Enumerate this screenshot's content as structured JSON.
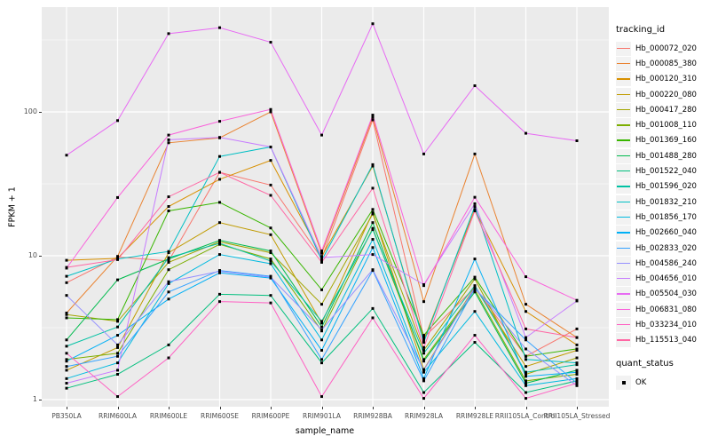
{
  "chart": {
    "y_axis": {
      "title": "FPKM + 1",
      "ticks": [
        {
          "label": "1",
          "value": 1
        },
        {
          "label": "10",
          "value": 10
        },
        {
          "label": "100",
          "value": 100
        }
      ],
      "minor_gridline_values": [
        3.1623,
        31.623,
        316.23
      ]
    },
    "x_axis": {
      "title": "sample_name",
      "categories": [
        "PB350LA",
        "RRIM600LA",
        "RRIM600LE",
        "RRIM600SE",
        "RRIM600PE",
        "RRIM901LA",
        "RRIM928BA",
        "RRIM928LA",
        "RRIM928LE",
        "RRII105LA_Control",
        "RRII105LA_Stressed"
      ]
    },
    "colors": {
      "panel_background": "#EBEBEB",
      "gridline": "#FFFFFF",
      "point": "#000000",
      "tick_label": "#4D4D4D"
    }
  },
  "legend": {
    "tracking_title": "tracking_id",
    "quant_title": "quant_status",
    "quant_items": [
      {
        "label": "OK"
      }
    ]
  },
  "chart_data": {
    "type": "line",
    "title": "",
    "xlabel": "sample_name",
    "ylabel": "FPKM + 1",
    "y_scale": "log10",
    "ylim": [
      1,
      450
    ],
    "grid": true,
    "legend_position": "right",
    "point_shape": "black-square",
    "x": [
      "PB350LA",
      "RRIM600LA",
      "RRIM600LE",
      "RRIM600SE",
      "RRIM600PE",
      "RRIM901LA",
      "RRIM928BA",
      "RRIM928LA",
      "RRIM928LE",
      "RRII105LA_Control",
      "RRII105LA_Stressed"
    ],
    "series": [
      {
        "name": "Hb_000072_020",
        "color": "#F8766D",
        "values": [
          6.5,
          9.8,
          9.2,
          38,
          31,
          9.6,
          88,
          2.7,
          6.0,
          2.0,
          3.1
        ]
      },
      {
        "name": "Hb_000085_380",
        "color": "#EA8331",
        "values": [
          4.0,
          9.9,
          61,
          66,
          100,
          10.4,
          92,
          4.8,
          51,
          4.6,
          2.7
        ]
      },
      {
        "name": "Hb_000120_310",
        "color": "#D89000",
        "values": [
          9.3,
          9.6,
          22,
          34,
          46,
          9.9,
          42,
          2.6,
          21,
          4.1,
          2.4
        ]
      },
      {
        "name": "Hb_000220_080",
        "color": "#C09B00",
        "values": [
          1.6,
          2.3,
          10.5,
          17,
          14,
          3.4,
          20,
          1.62,
          6.1,
          1.7,
          2.2
        ]
      },
      {
        "name": "Hb_000417_280",
        "color": "#A3A500",
        "values": [
          3.9,
          3.5,
          9.0,
          12.5,
          10.5,
          4.6,
          19.5,
          2.2,
          6.9,
          1.5,
          1.95
        ]
      },
      {
        "name": "Hb_001008_110",
        "color": "#7CAE00",
        "values": [
          1.9,
          2.1,
          8.0,
          12.0,
          9.5,
          3.0,
          15.5,
          1.9,
          5.8,
          1.35,
          1.5
        ]
      },
      {
        "name": "Hb_001369_160",
        "color": "#39B600",
        "values": [
          3.7,
          3.6,
          20.5,
          23.5,
          15.6,
          5.8,
          21,
          2.8,
          7.1,
          2.0,
          2.25
        ]
      },
      {
        "name": "Hb_001488_280",
        "color": "#00BB4E",
        "values": [
          2.6,
          6.8,
          9.5,
          12.8,
          10.8,
          3.2,
          17,
          1.85,
          5.6,
          1.3,
          1.6
        ]
      },
      {
        "name": "Hb_001522_040",
        "color": "#00BF7D",
        "values": [
          1.2,
          1.5,
          2.4,
          5.4,
          5.3,
          1.8,
          4.3,
          1.12,
          2.5,
          1.12,
          1.35
        ]
      },
      {
        "name": "Hb_001596_020",
        "color": "#00C1A3",
        "values": [
          2.35,
          3.2,
          9.7,
          12.2,
          9.2,
          3.5,
          15.2,
          2.1,
          6.2,
          1.55,
          1.75
        ]
      },
      {
        "name": "Hb_001832_210",
        "color": "#00BFC4",
        "values": [
          7.2,
          9.5,
          10.7,
          49,
          57,
          9.3,
          43,
          2.5,
          22,
          1.9,
          1.8
        ]
      },
      {
        "name": "Hb_001856_170",
        "color": "#00BAE0",
        "values": [
          1.4,
          1.8,
          6.4,
          10.2,
          8.8,
          2.6,
          13,
          1.55,
          4.1,
          1.25,
          1.4
        ]
      },
      {
        "name": "Hb_002660_040",
        "color": "#00B0F6",
        "values": [
          1.85,
          2.8,
          5.0,
          7.6,
          7.0,
          2.2,
          11.4,
          1.4,
          9.5,
          1.45,
          1.55
        ]
      },
      {
        "name": "Hb_002833_020",
        "color": "#35A2FF",
        "values": [
          1.7,
          2.0,
          5.6,
          7.9,
          7.2,
          1.9,
          7.9,
          1.35,
          5.9,
          2.6,
          1.3
        ]
      },
      {
        "name": "Hb_004586_240",
        "color": "#9590FF",
        "values": [
          5.3,
          2.4,
          6.6,
          7.8,
          7.1,
          3.05,
          8.0,
          1.6,
          6.0,
          2.25,
          1.25
        ]
      },
      {
        "name": "Hb_004656_010",
        "color": "#C77CFF",
        "values": [
          1.3,
          1.6,
          64,
          66.5,
          57,
          9.7,
          10.2,
          6.3,
          23,
          2.7,
          4.85
        ]
      },
      {
        "name": "Hb_005504_030",
        "color": "#E76BF3",
        "values": [
          50,
          87,
          350,
          385,
          305,
          69,
          410,
          51,
          152,
          71,
          63
        ]
      },
      {
        "name": "Hb_006831_080",
        "color": "#FA62DB",
        "values": [
          8.2,
          25.4,
          69,
          86,
          104,
          10.8,
          95,
          6.2,
          25.5,
          7.15,
          4.9
        ]
      },
      {
        "name": "Hb_033234_010",
        "color": "#FF61C3",
        "values": [
          2.1,
          1.05,
          1.95,
          4.8,
          4.7,
          1.05,
          3.7,
          1.02,
          2.8,
          1.02,
          1.3
        ]
      },
      {
        "name": "Hb_115513_040",
        "color": "#FF67A4",
        "values": [
          8.3,
          9.4,
          25.7,
          38,
          26.3,
          9.0,
          29.5,
          2.3,
          20.5,
          3.1,
          2.7
        ]
      }
    ]
  }
}
